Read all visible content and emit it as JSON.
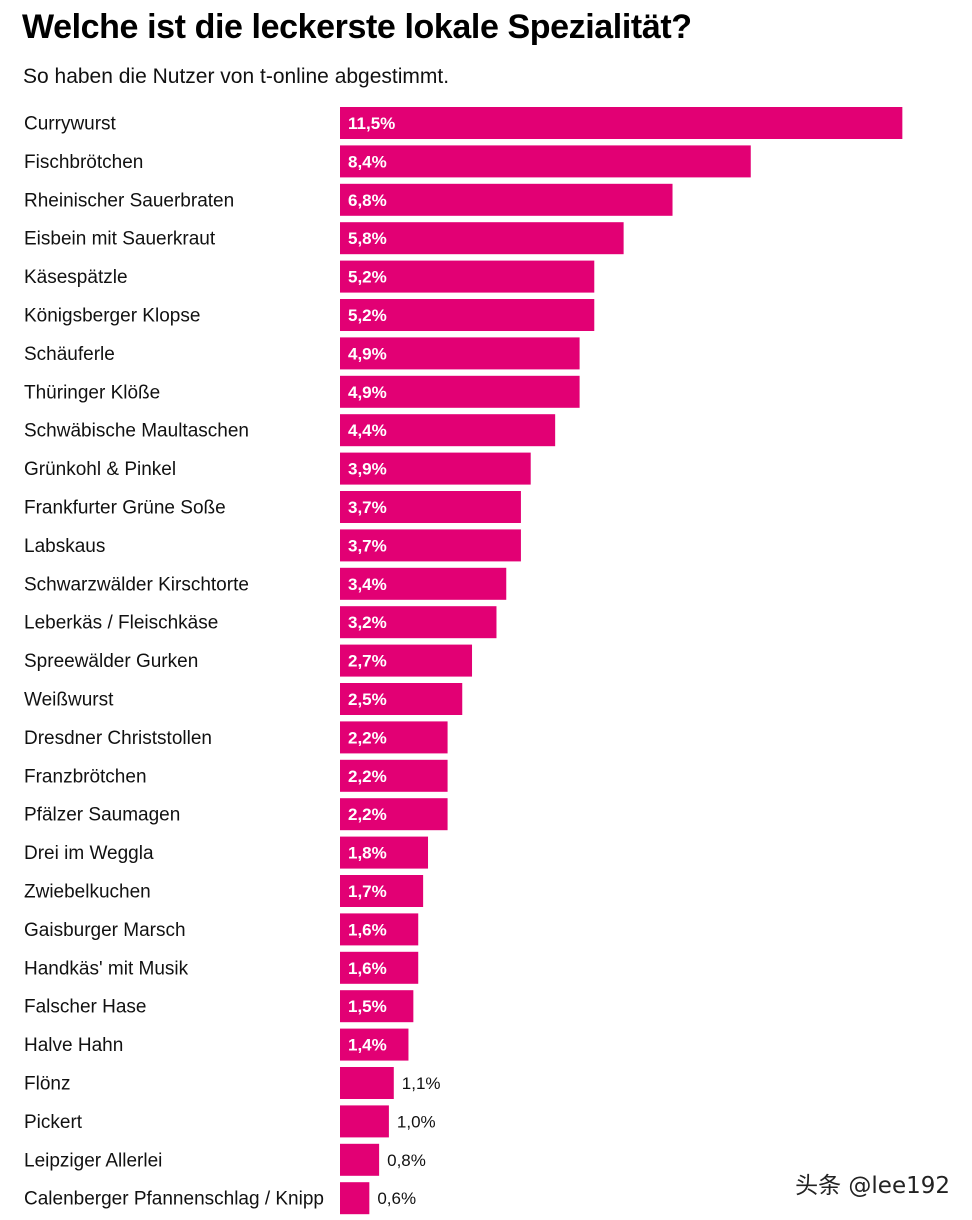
{
  "chart_data": {
    "type": "bar",
    "orientation": "horizontal",
    "title": "Welche ist die leckerste lokale Spezialität?",
    "subtitle": "So haben die Nutzer von t-online abgestimmt.",
    "bar_color": "#E20074",
    "value_suffix": "%",
    "categories": [
      "Currywurst",
      "Fischbrötchen",
      "Rheinischer Sauerbraten",
      "Eisbein mit Sauerkraut",
      "Käsespätzle",
      "Königsberger Klopse",
      "Schäuferle",
      "Thüringer Klöße",
      "Schwäbische Maultaschen",
      "Grünkohl & Pinkel",
      "Frankfurter Grüne Soße",
      "Labskaus",
      "Schwarzwälder Kirschtorte",
      "Leberkäs / Fleischkäse",
      "Spreewälder Gurken",
      "Weißwurst",
      "Dresdner Christstollen",
      "Franzbrötchen",
      "Pfälzer Saumagen",
      "Drei im Weggla",
      "Zwiebelkuchen",
      "Gaisburger Marsch",
      "Handkäs' mit Musik",
      "Falscher Hase",
      "Halve Hahn",
      "Flönz",
      "Pickert",
      "Leipziger Allerlei",
      "Calenberger Pfannenschlag / Knipp"
    ],
    "values": [
      11.5,
      8.4,
      6.8,
      5.8,
      5.2,
      5.2,
      4.9,
      4.9,
      4.4,
      3.9,
      3.7,
      3.7,
      3.4,
      3.2,
      2.7,
      2.5,
      2.2,
      2.2,
      2.2,
      1.8,
      1.7,
      1.6,
      1.6,
      1.5,
      1.4,
      1.1,
      1.0,
      0.8,
      0.6
    ],
    "value_labels": [
      "11,5%",
      "8,4%",
      "6,8%",
      "5,8%",
      "5,2%",
      "5,2%",
      "4,9%",
      "4,9%",
      "4,4%",
      "3,9%",
      "3,7%",
      "3,7%",
      "3,4%",
      "3,2%",
      "2,7%",
      "2,5%",
      "2,2%",
      "2,2%",
      "2,2%",
      "1,8%",
      "1,7%",
      "1,6%",
      "1,6%",
      "1,5%",
      "1,4%",
      "1,1%",
      "1,0%",
      "0,8%",
      "0,6%"
    ],
    "grid": false,
    "legend": "none"
  },
  "watermark": "头条 @lee192"
}
